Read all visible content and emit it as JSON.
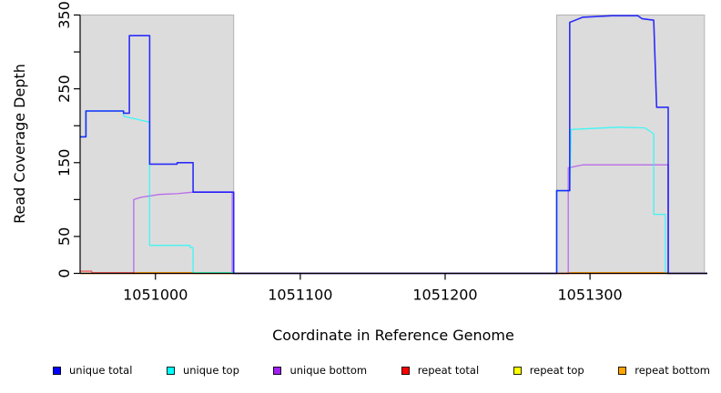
{
  "figure": {
    "background": "#ffffff",
    "shade_color": "#dcdcdc",
    "shade_border": "#b3b3b3",
    "axis_color": "#000000"
  },
  "chart_data": {
    "type": "line",
    "step": false,
    "title": "",
    "xlabel": "Coordinate in Reference Genome",
    "ylabel": "Read Coverage Depth",
    "xlim": [
      1050948,
      1051381
    ],
    "ylim": [
      0,
      350
    ],
    "grid": false,
    "legend_position": "bottom",
    "x_ticks": [
      1051000,
      1051100,
      1051200,
      1051300
    ],
    "x_tick_labels": [
      "1051000",
      "1051100",
      "1051200",
      "1051300"
    ],
    "y_ticks": [
      0,
      50,
      100,
      150,
      200,
      250,
      300,
      350
    ],
    "y_tick_labels": [
      "0",
      "50",
      "",
      "150",
      "",
      "250",
      "",
      "350"
    ],
    "shaded_regions": [
      {
        "x0": 1050948,
        "x1": 1051054,
        "note": "left repeat region"
      },
      {
        "x0": 1051277,
        "x1": 1051379,
        "note": "right repeat region"
      }
    ],
    "series": [
      {
        "name": "repeat top",
        "color": "#FFFF00",
        "alpha": 0.9,
        "width": 1.3,
        "points": [
          [
            1050948,
            0
          ],
          [
            1051026,
            0
          ],
          [
            1051026,
            1
          ],
          [
            1051054,
            1
          ],
          [
            1051054,
            0
          ],
          [
            1051381,
            0
          ]
        ]
      },
      {
        "name": "repeat bottom",
        "color": "#FFA500",
        "alpha": 0.9,
        "width": 1.4,
        "points": [
          [
            1050948,
            0
          ],
          [
            1050985,
            0
          ],
          [
            1050985,
            1
          ],
          [
            1051026,
            1
          ],
          [
            1051026,
            0
          ],
          [
            1051286,
            0
          ],
          [
            1051286,
            1
          ],
          [
            1051353,
            1
          ],
          [
            1051353,
            0
          ],
          [
            1051381,
            0
          ]
        ]
      },
      {
        "name": "repeat total",
        "color": "#FF0000",
        "alpha": 0.55,
        "width": 1.4,
        "points": [
          [
            1050948,
            3
          ],
          [
            1050956,
            3
          ],
          [
            1050956,
            1
          ],
          [
            1050985,
            1
          ],
          [
            1050985,
            0
          ],
          [
            1051381,
            0
          ]
        ]
      },
      {
        "name": "unique bottom",
        "color": "#A020F0",
        "alpha": 0.6,
        "width": 1.3,
        "points": [
          [
            1050948,
            0
          ],
          [
            1050985,
            0
          ],
          [
            1050985,
            100
          ],
          [
            1050990,
            103
          ],
          [
            1051003,
            107
          ],
          [
            1051015,
            108
          ],
          [
            1051026,
            110
          ],
          [
            1051053,
            110
          ],
          [
            1051053,
            0
          ],
          [
            1051285,
            0
          ],
          [
            1051285,
            143
          ],
          [
            1051295,
            147
          ],
          [
            1051354,
            147
          ],
          [
            1051354,
            0
          ],
          [
            1051381,
            0
          ]
        ]
      },
      {
        "name": "unique top",
        "color": "#00FFFF",
        "alpha": 0.7,
        "width": 1.3,
        "points": [
          [
            1050948,
            185
          ],
          [
            1050952,
            185
          ],
          [
            1050952,
            220
          ],
          [
            1050978,
            220
          ],
          [
            1050978,
            213
          ],
          [
            1050982,
            211
          ],
          [
            1050996,
            205
          ],
          [
            1050996,
            38
          ],
          [
            1051024,
            38
          ],
          [
            1051024,
            35
          ],
          [
            1051026,
            35
          ],
          [
            1051026,
            1
          ],
          [
            1051054,
            1
          ],
          [
            1051054,
            0
          ],
          [
            1051277,
            0
          ],
          [
            1051277,
            112
          ],
          [
            1051286,
            112
          ],
          [
            1051287,
            195
          ],
          [
            1051320,
            198
          ],
          [
            1051338,
            197
          ],
          [
            1051344,
            189
          ],
          [
            1051344,
            80
          ],
          [
            1051352,
            80
          ],
          [
            1051352,
            0
          ],
          [
            1051381,
            0
          ]
        ]
      },
      {
        "name": "unique total",
        "color": "#0000FF",
        "alpha": 0.8,
        "width": 1.6,
        "points": [
          [
            1050948,
            185
          ],
          [
            1050952,
            185
          ],
          [
            1050952,
            220
          ],
          [
            1050978,
            220
          ],
          [
            1050978,
            217
          ],
          [
            1050982,
            217
          ],
          [
            1050982,
            322
          ],
          [
            1050996,
            322
          ],
          [
            1050996,
            148
          ],
          [
            1051015,
            148
          ],
          [
            1051015,
            150
          ],
          [
            1051026,
            150
          ],
          [
            1051026,
            110
          ],
          [
            1051054,
            110
          ],
          [
            1051054,
            0
          ],
          [
            1051277,
            0
          ],
          [
            1051277,
            112
          ],
          [
            1051286,
            112
          ],
          [
            1051286,
            340
          ],
          [
            1051295,
            347
          ],
          [
            1051315,
            349
          ],
          [
            1051333,
            349
          ],
          [
            1051336,
            345
          ],
          [
            1051344,
            343
          ],
          [
            1051346,
            225
          ],
          [
            1051354,
            225
          ],
          [
            1051354,
            0
          ],
          [
            1051381,
            0
          ]
        ]
      }
    ],
    "legend": [
      {
        "label": "unique total",
        "color": "#0000FF"
      },
      {
        "label": "unique top",
        "color": "#00FFFF"
      },
      {
        "label": "unique bottom",
        "color": "#A020F0"
      },
      {
        "label": "repeat total",
        "color": "#FF0000"
      },
      {
        "label": "repeat top",
        "color": "#FFFF00"
      },
      {
        "label": "repeat bottom",
        "color": "#FFA500"
      }
    ]
  }
}
